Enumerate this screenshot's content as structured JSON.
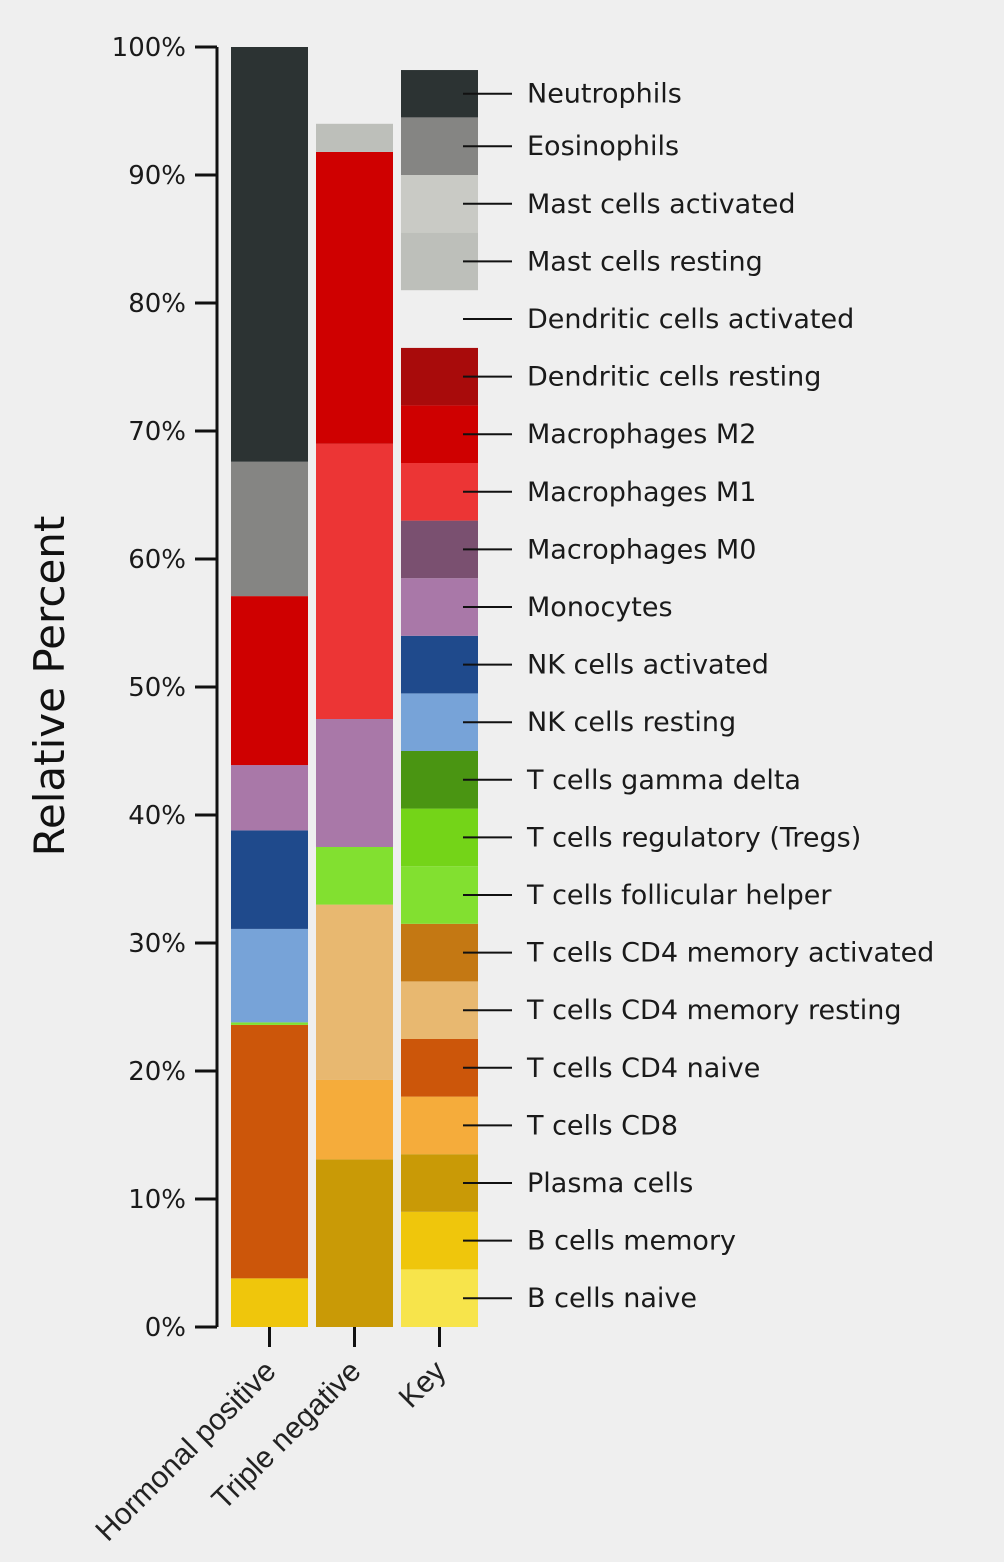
{
  "chart_data": {
    "type": "bar",
    "stacked": true,
    "ylabel": "Relative Percent",
    "xlabel": "",
    "ylim": [
      0,
      100
    ],
    "yticks": [
      "0%",
      "10%",
      "20%",
      "30%",
      "40%",
      "50%",
      "60%",
      "70%",
      "80%",
      "90%",
      "100%"
    ],
    "categories": [
      "Hormonal positive",
      "Triple negative",
      "Key"
    ],
    "series": [
      {
        "name": "B cells naive",
        "color": "#f7e44b",
        "values": [
          0,
          0,
          4.5
        ]
      },
      {
        "name": "B cells memory",
        "color": "#efc60c",
        "values": [
          3.8,
          0,
          4.5
        ]
      },
      {
        "name": "Plasma cells",
        "color": "#c99a06",
        "values": [
          0,
          13.1,
          4.5
        ]
      },
      {
        "name": "T cells CD8",
        "color": "#f5ac3b",
        "values": [
          0,
          6.2,
          4.5
        ]
      },
      {
        "name": "T cells CD4 naive",
        "color": "#cc560a",
        "values": [
          19.8,
          0,
          4.5
        ]
      },
      {
        "name": "T cells CD4 memory resting",
        "color": "#e8b870",
        "values": [
          0,
          13.7,
          4.5
        ]
      },
      {
        "name": "T cells CD4 memory activated",
        "color": "#c47813",
        "values": [
          0,
          0,
          4.5
        ]
      },
      {
        "name": "T cells follicular helper",
        "color": "#82e030",
        "values": [
          0.2,
          4.5,
          4.5
        ]
      },
      {
        "name": "T cells regulatory (Tregs)",
        "color": "#74d418",
        "values": [
          0,
          0,
          4.5
        ]
      },
      {
        "name": "T cells gamma delta",
        "color": "#4a9512",
        "values": [
          0,
          0,
          4.5
        ]
      },
      {
        "name": "NK cells resting",
        "color": "#77a3d8",
        "values": [
          7.3,
          0,
          4.5
        ]
      },
      {
        "name": "NK cells activated",
        "color": "#1f4a8c",
        "values": [
          7.7,
          0,
          4.5
        ]
      },
      {
        "name": "Monocytes",
        "color": "#a978a8",
        "values": [
          5.1,
          10.0,
          4.5
        ]
      },
      {
        "name": "Macrophages M0",
        "color": "#7a5070",
        "values": [
          0,
          0,
          4.5
        ]
      },
      {
        "name": "Macrophages M1",
        "color": "#ec3535",
        "values": [
          0,
          21.5,
          4.5
        ]
      },
      {
        "name": "Macrophages M2",
        "color": "#cf0000",
        "values": [
          13.2,
          22.8,
          4.5
        ]
      },
      {
        "name": "Dendritic cells resting",
        "color": "#a80b0b",
        "values": [
          0,
          0,
          4.5
        ]
      },
      {
        "name": "Dendritic cells activated",
        "color": "#efefef",
        "values": [
          0,
          0,
          4.5
        ]
      },
      {
        "name": "Mast cells resting",
        "color": "#bdbfba",
        "values": [
          0,
          2.2,
          4.5
        ]
      },
      {
        "name": "Mast cells activated",
        "color": "#c9cac5",
        "values": [
          0,
          0,
          4.5
        ]
      },
      {
        "name": "Eosinophils",
        "color": "#858583",
        "values": [
          10.5,
          0,
          4.5
        ]
      },
      {
        "name": "Neutrophils",
        "color": "#2c3333",
        "values": [
          32.4,
          0,
          3.7
        ]
      }
    ],
    "legend": "right of Key column"
  }
}
